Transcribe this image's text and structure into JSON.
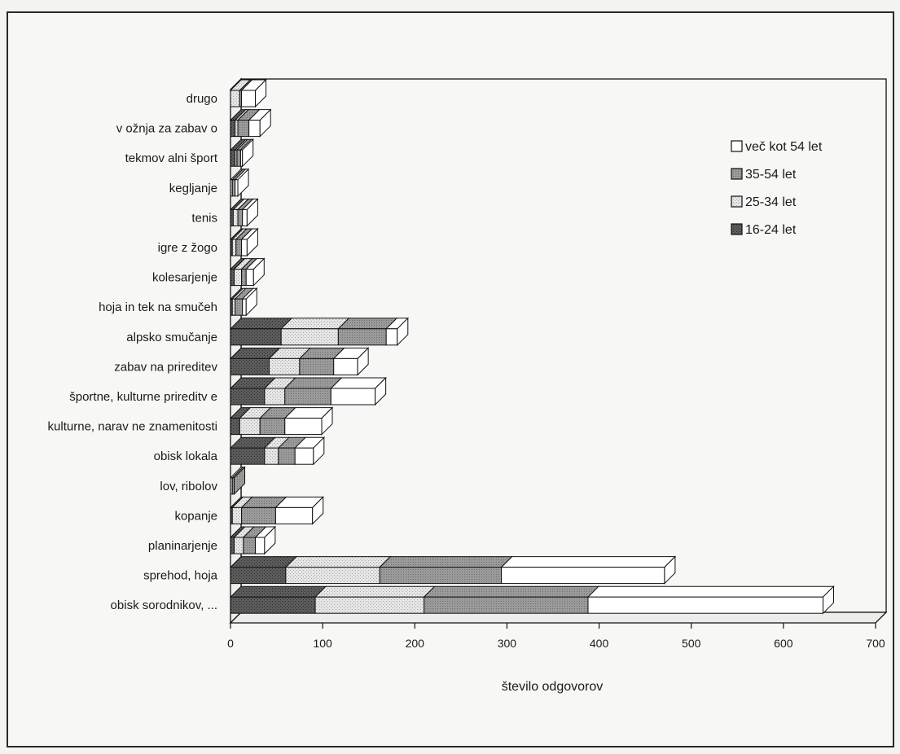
{
  "chart_data": {
    "type": "bar",
    "orientation": "horizontal",
    "stacked": true,
    "xlabel": "število odgovorov",
    "ylabel": "",
    "xlim": [
      0,
      700
    ],
    "xticks": [
      0,
      100,
      200,
      300,
      400,
      500,
      600,
      700
    ],
    "legend_position": "top-right",
    "categories": [
      "drugo",
      "v ožnja za zabav o",
      "tekmov alni šport",
      "kegljanje",
      "tenis",
      "igre z žogo",
      "kolesarjenje",
      "hoja in tek na smučeh",
      "alpsko smučanje",
      "zabav na prireditev",
      "športne, kulturne prireditv e",
      "kulturne, narav ne znamenitosti",
      "obisk lokala",
      "lov, ribolov",
      "kopanje",
      "planinarjenje",
      "sprehod, hoja",
      "obisk sorodnikov, ..."
    ],
    "series": [
      {
        "name": "16-24 let",
        "values": [
          0,
          5,
          5,
          0,
          3,
          2,
          4,
          2,
          55,
          42,
          37,
          10,
          37,
          0,
          2,
          4,
          60,
          92
        ],
        "color": "#565656",
        "pattern": "pat-dark"
      },
      {
        "name": "25-34 let",
        "values": [
          10,
          3,
          2,
          2,
          5,
          4,
          8,
          3,
          62,
          33,
          22,
          22,
          15,
          2,
          10,
          10,
          102,
          118
        ],
        "color": "#d6d6d6",
        "pattern": "pat-dots"
      },
      {
        "name": "35-54 let",
        "values": [
          2,
          12,
          4,
          3,
          5,
          6,
          5,
          8,
          52,
          37,
          50,
          27,
          18,
          2,
          37,
          13,
          132,
          178
        ],
        "color": "#8d8d8d",
        "pattern": "pat-mid"
      },
      {
        "name": "več kot 54 let",
        "values": [
          15,
          12,
          2,
          3,
          5,
          6,
          8,
          4,
          12,
          26,
          48,
          40,
          20,
          0,
          40,
          10,
          177,
          255
        ],
        "color": "#ffffff",
        "pattern": ""
      }
    ],
    "legend_order": [
      "več kot 54 let",
      "35-54 let",
      "25-34 let",
      "16-24 let"
    ]
  }
}
